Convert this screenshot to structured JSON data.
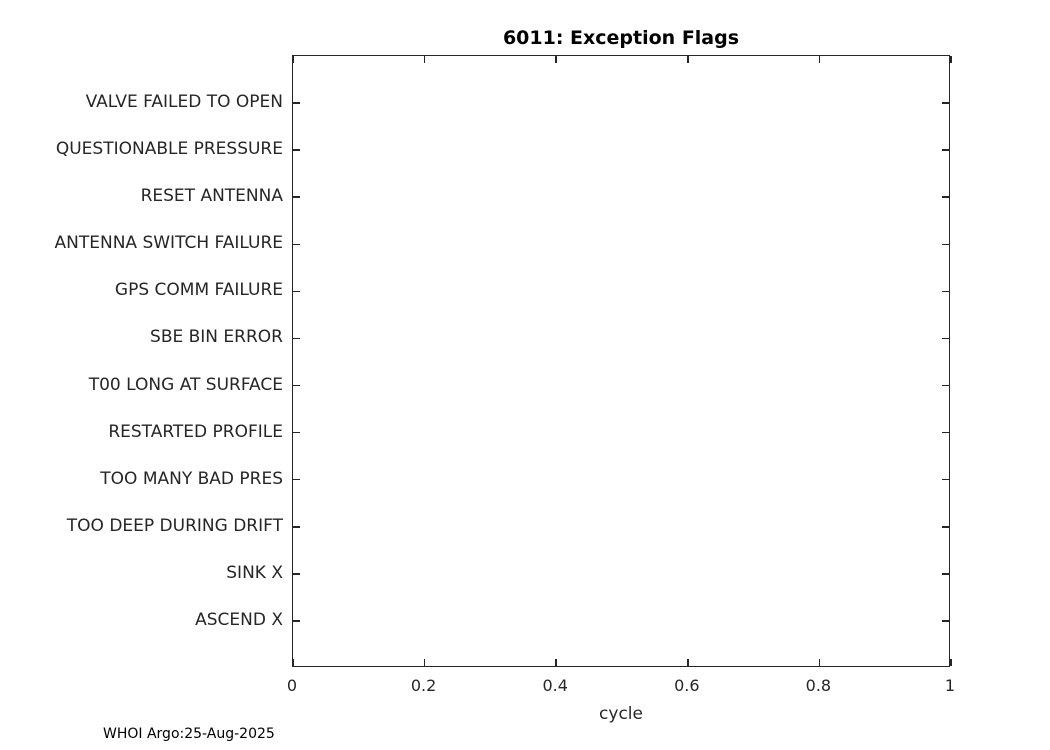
{
  "figure": {
    "footer": "WHOI Argo:25-Aug-2025"
  },
  "chart_data": {
    "type": "scatter",
    "title": "6011: Exception Flags",
    "xlabel": "cycle",
    "ylabel": "",
    "x_axis": {
      "min": 0,
      "max": 1,
      "ticks": [
        0,
        0.2,
        0.4,
        0.6,
        0.8,
        1
      ],
      "tick_labels": [
        "0",
        "0.2",
        "0.4",
        "0.6",
        "0.8",
        "1"
      ]
    },
    "y_categories_top_to_bottom": [
      "VALVE FAILED TO OPEN",
      "QUESTIONABLE PRESSURE",
      "RESET ANTENNA",
      "ANTENNA SWITCH FAILURE",
      "GPS COMM FAILURE",
      "SBE BIN ERROR",
      "T00 LONG AT SURFACE",
      "RESTARTED PROFILE",
      "TOO MANY BAD PRES",
      "TOO DEEP DURING DRIFT",
      "SINK X",
      "ASCEND X"
    ],
    "series": [],
    "grid": false,
    "legend": null,
    "layout": {
      "box": true,
      "tick_direction": "in",
      "plot_background": "#ffffff",
      "axis_color": "#262626",
      "title_color": "#000000"
    }
  }
}
